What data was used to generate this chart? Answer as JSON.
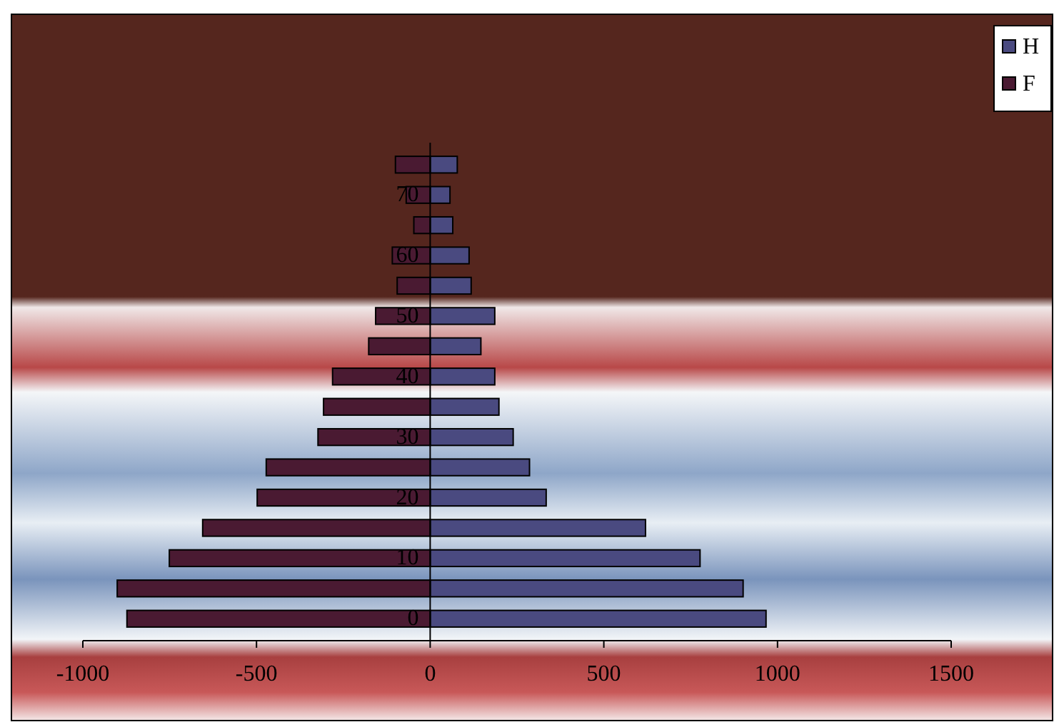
{
  "chart_data": {
    "type": "bar",
    "orientation": "horizontal",
    "categories": [
      null,
      "70",
      null,
      "60",
      null,
      "50",
      null,
      "40",
      null,
      "30",
      null,
      "20",
      null,
      "10",
      null,
      "0"
    ],
    "series": [
      {
        "name": "H",
        "color": "#4a4a80",
        "values": [
          78,
          57,
          65,
          112,
          118,
          186,
          146,
          186,
          198,
          239,
          286,
          334,
          620,
          777,
          901,
          967
        ]
      },
      {
        "name": "F",
        "color": "#4a1a32",
        "values": [
          -100,
          -69,
          -47,
          -109,
          -95,
          -157,
          -177,
          -281,
          -307,
          -323,
          -472,
          -498,
          -655,
          -751,
          -901,
          -873
        ]
      }
    ],
    "xlim": [
      -1000,
      1500
    ],
    "xticks": [
      -1000,
      -500,
      0,
      500,
      1000,
      1500
    ],
    "legend": "top right",
    "stacked": true
  }
}
